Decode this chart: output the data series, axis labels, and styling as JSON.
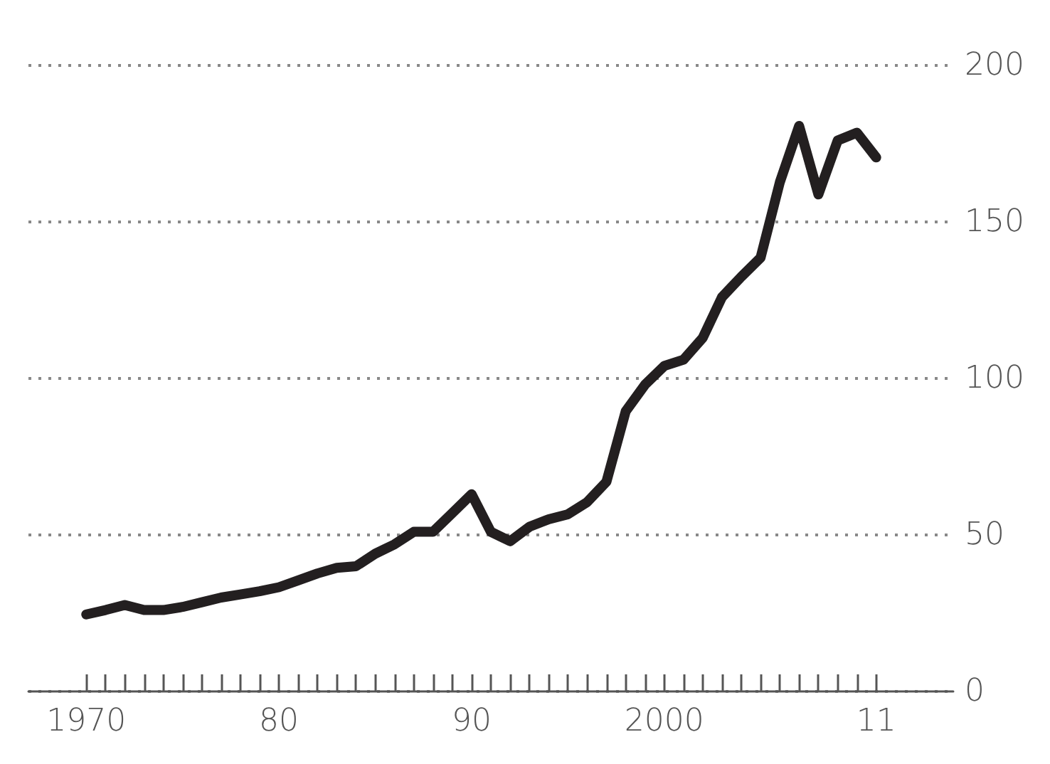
{
  "chart_data": {
    "type": "line",
    "x": [
      1970,
      1971,
      1972,
      1973,
      1974,
      1975,
      1976,
      1977,
      1978,
      1979,
      1980,
      1981,
      1982,
      1983,
      1984,
      1985,
      1986,
      1987,
      1988,
      1989,
      1990,
      1991,
      1992,
      1993,
      1994,
      1995,
      1996,
      1997,
      1998,
      1999,
      2000,
      2001,
      2002,
      2003,
      2004,
      2005,
      2006,
      2007,
      2008,
      2009,
      2010,
      2011
    ],
    "series": [
      {
        "color": "#231f20",
        "values": [
          24.6,
          26,
          27.6,
          26,
          26,
          27,
          28.5,
          30,
          31,
          32,
          33.3,
          35.5,
          37.7,
          39.5,
          40,
          44,
          47,
          51,
          51,
          57,
          63,
          51,
          48,
          52.6,
          55,
          56.6,
          60.5,
          67,
          89.5,
          98,
          104,
          106,
          113,
          126,
          132.5,
          138.6,
          162.7,
          180.7,
          158.8,
          176,
          178.5,
          170.6
        ]
      }
    ],
    "xlim": [
      1967,
      2015
    ],
    "xticks": [
      1970,
      {
        "value": 1971,
        "label": null
      },
      {
        "value": 1972,
        "label": null
      },
      {
        "value": 1973,
        "label": null
      },
      {
        "value": 1974,
        "label": null
      },
      {
        "value": 1975,
        "label": null
      },
      {
        "value": 1976,
        "label": null
      },
      {
        "value": 1977,
        "label": null
      },
      {
        "value": 1978,
        "label": null
      },
      {
        "value": 1979,
        "label": null
      },
      {
        "value": 1980,
        "label": "80"
      },
      {
        "value": 1981,
        "label": null
      },
      {
        "value": 1982,
        "label": null
      },
      {
        "value": 1983,
        "label": null
      },
      {
        "value": 1984,
        "label": null
      },
      {
        "value": 1985,
        "label": null
      },
      {
        "value": 1986,
        "label": null
      },
      {
        "value": 1987,
        "label": null
      },
      {
        "value": 1988,
        "label": null
      },
      {
        "value": 1989,
        "label": null
      },
      {
        "value": 1990,
        "label": "90"
      },
      {
        "value": 1991,
        "label": null
      },
      {
        "value": 1992,
        "label": null
      },
      {
        "value": 1993,
        "label": null
      },
      {
        "value": 1994,
        "label": null
      },
      {
        "value": 1995,
        "label": null
      },
      {
        "value": 1996,
        "label": null
      },
      {
        "value": 1997,
        "label": null
      },
      {
        "value": 1998,
        "label": null
      },
      {
        "value": 1999,
        "label": null
      },
      2000,
      {
        "value": 2001,
        "label": null
      },
      {
        "value": 2002,
        "label": null
      },
      {
        "value": 2003,
        "label": null
      },
      {
        "value": 2004,
        "label": null
      },
      {
        "value": 2005,
        "label": null
      },
      {
        "value": 2006,
        "label": null
      },
      {
        "value": 2007,
        "label": null
      },
      {
        "value": 2008,
        "label": null
      },
      {
        "value": 2009,
        "label": null
      },
      {
        "value": 2010,
        "label": null
      },
      {
        "value": 2011,
        "label": "11"
      }
    ],
    "ylim": [
      0,
      200
    ],
    "yticks": [
      0,
      50,
      100,
      150,
      200
    ],
    "grid": "y",
    "line_style": "solid"
  }
}
